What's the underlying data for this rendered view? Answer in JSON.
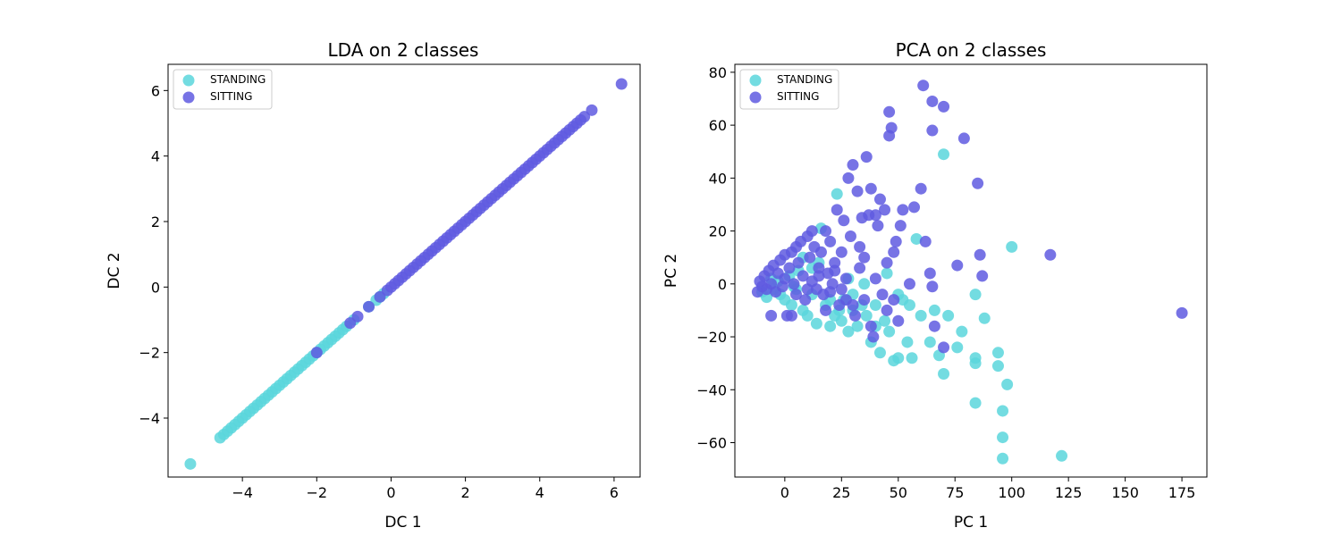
{
  "colors": {
    "standing": "#5ad6dc",
    "sitting": "#5f5ae0"
  },
  "chart_data": [
    {
      "type": "scatter",
      "title": "LDA on 2 classes",
      "xlabel": "DC 1",
      "ylabel": "DC 2",
      "xlim": [
        -6.0,
        6.7
      ],
      "ylim": [
        -5.8,
        6.8
      ],
      "xticks": [
        -4,
        -2,
        0,
        2,
        4,
        6
      ],
      "yticks": [
        -4,
        -2,
        0,
        2,
        4,
        6
      ],
      "legend_position": "top-left",
      "series": [
        {
          "name": "STANDING",
          "color": "#5ad6dc",
          "points": [
            [
              -5.4,
              -5.4
            ],
            [
              -4.6,
              -4.6
            ],
            [
              -4.5,
              -4.5
            ],
            [
              -4.4,
              -4.4
            ],
            [
              -4.3,
              -4.3
            ],
            [
              -4.2,
              -4.2
            ],
            [
              -4.1,
              -4.1
            ],
            [
              -4.0,
              -4.0
            ],
            [
              -3.9,
              -3.9
            ],
            [
              -3.8,
              -3.8
            ],
            [
              -3.7,
              -3.7
            ],
            [
              -3.6,
              -3.6
            ],
            [
              -3.5,
              -3.5
            ],
            [
              -3.4,
              -3.4
            ],
            [
              -3.3,
              -3.3
            ],
            [
              -3.2,
              -3.2
            ],
            [
              -3.1,
              -3.1
            ],
            [
              -3.0,
              -3.0
            ],
            [
              -2.9,
              -2.9
            ],
            [
              -2.8,
              -2.8
            ],
            [
              -2.7,
              -2.7
            ],
            [
              -2.6,
              -2.6
            ],
            [
              -2.5,
              -2.5
            ],
            [
              -2.4,
              -2.4
            ],
            [
              -2.3,
              -2.3
            ],
            [
              -2.2,
              -2.2
            ],
            [
              -2.1,
              -2.1
            ],
            [
              -2.0,
              -2.0
            ],
            [
              -1.9,
              -1.9
            ],
            [
              -1.8,
              -1.8
            ],
            [
              -1.7,
              -1.7
            ],
            [
              -1.6,
              -1.6
            ],
            [
              -1.5,
              -1.5
            ],
            [
              -1.4,
              -1.4
            ],
            [
              -1.3,
              -1.3
            ],
            [
              -1.2,
              -1.2
            ],
            [
              -1.0,
              -1.0
            ],
            [
              -0.6,
              -0.6
            ],
            [
              -0.4,
              -0.4
            ],
            [
              -0.3,
              -0.3
            ],
            [
              -0.2,
              -0.2
            ]
          ]
        },
        {
          "name": "SITTING",
          "color": "#5f5ae0",
          "points": [
            [
              -2.0,
              -2.0
            ],
            [
              -1.1,
              -1.1
            ],
            [
              -0.9,
              -0.9
            ],
            [
              -0.6,
              -0.6
            ],
            [
              -0.3,
              -0.3
            ],
            [
              -0.1,
              -0.1
            ],
            [
              0.0,
              0.0
            ],
            [
              0.1,
              0.1
            ],
            [
              0.2,
              0.2
            ],
            [
              0.3,
              0.3
            ],
            [
              0.4,
              0.4
            ],
            [
              0.5,
              0.5
            ],
            [
              0.6,
              0.6
            ],
            [
              0.7,
              0.7
            ],
            [
              0.8,
              0.8
            ],
            [
              0.9,
              0.9
            ],
            [
              1.0,
              1.0
            ],
            [
              1.1,
              1.1
            ],
            [
              1.2,
              1.2
            ],
            [
              1.3,
              1.3
            ],
            [
              1.4,
              1.4
            ],
            [
              1.5,
              1.5
            ],
            [
              1.6,
              1.6
            ],
            [
              1.7,
              1.7
            ],
            [
              1.8,
              1.8
            ],
            [
              1.9,
              1.9
            ],
            [
              2.0,
              2.0
            ],
            [
              2.1,
              2.1
            ],
            [
              2.2,
              2.2
            ],
            [
              2.3,
              2.3
            ],
            [
              2.4,
              2.4
            ],
            [
              2.5,
              2.5
            ],
            [
              2.6,
              2.6
            ],
            [
              2.7,
              2.7
            ],
            [
              2.8,
              2.8
            ],
            [
              2.9,
              2.9
            ],
            [
              3.0,
              3.0
            ],
            [
              3.1,
              3.1
            ],
            [
              3.2,
              3.2
            ],
            [
              3.3,
              3.3
            ],
            [
              3.4,
              3.4
            ],
            [
              3.5,
              3.5
            ],
            [
              3.6,
              3.6
            ],
            [
              3.7,
              3.7
            ],
            [
              3.8,
              3.8
            ],
            [
              3.9,
              3.9
            ],
            [
              4.0,
              4.0
            ],
            [
              4.1,
              4.1
            ],
            [
              4.2,
              4.2
            ],
            [
              4.3,
              4.3
            ],
            [
              4.4,
              4.4
            ],
            [
              4.5,
              4.5
            ],
            [
              4.6,
              4.6
            ],
            [
              4.7,
              4.7
            ],
            [
              4.8,
              4.8
            ],
            [
              4.9,
              4.9
            ],
            [
              5.0,
              5.0
            ],
            [
              5.1,
              5.1
            ],
            [
              5.2,
              5.2
            ],
            [
              5.4,
              5.4
            ],
            [
              6.2,
              6.2
            ]
          ]
        }
      ]
    },
    {
      "type": "scatter",
      "title": "PCA on 2 classes",
      "xlabel": "PC 1",
      "ylabel": "PC 2",
      "xlim": [
        -22,
        186
      ],
      "ylim": [
        -73,
        83
      ],
      "xticks": [
        0,
        25,
        50,
        75,
        100,
        125,
        150,
        175
      ],
      "yticks": [
        -60,
        -40,
        -20,
        0,
        20,
        40,
        60,
        80
      ],
      "legend_position": "top-left",
      "series": [
        {
          "name": "STANDING",
          "color": "#5ad6dc",
          "points": [
            [
              -10,
              -3
            ],
            [
              -8,
              -5
            ],
            [
              -6,
              2
            ],
            [
              -5,
              -2
            ],
            [
              -3,
              1
            ],
            [
              -2,
              -4
            ],
            [
              0,
              -6
            ],
            [
              2,
              3
            ],
            [
              3,
              -8
            ],
            [
              5,
              -2
            ],
            [
              6,
              5
            ],
            [
              8,
              -10
            ],
            [
              10,
              -12
            ],
            [
              12,
              -4
            ],
            [
              14,
              -15
            ],
            [
              15,
              8
            ],
            [
              16,
              21
            ],
            [
              18,
              -8
            ],
            [
              20,
              -16
            ],
            [
              22,
              -12
            ],
            [
              23,
              34
            ],
            [
              25,
              -14
            ],
            [
              26,
              -6
            ],
            [
              28,
              -18
            ],
            [
              30,
              -10
            ],
            [
              32,
              -16
            ],
            [
              34,
              -8
            ],
            [
              36,
              -12
            ],
            [
              38,
              -22
            ],
            [
              40,
              -16
            ],
            [
              42,
              -26
            ],
            [
              44,
              -14
            ],
            [
              46,
              -18
            ],
            [
              48,
              -29
            ],
            [
              50,
              -28
            ],
            [
              52,
              -6
            ],
            [
              54,
              -22
            ],
            [
              56,
              -28
            ],
            [
              58,
              17
            ],
            [
              60,
              -12
            ],
            [
              64,
              -22
            ],
            [
              66,
              -10
            ],
            [
              68,
              -27
            ],
            [
              70,
              49
            ],
            [
              70,
              -34
            ],
            [
              72,
              -12
            ],
            [
              76,
              -24
            ],
            [
              78,
              -18
            ],
            [
              84,
              -4
            ],
            [
              84,
              -28
            ],
            [
              84,
              -30
            ],
            [
              84,
              -45
            ],
            [
              88,
              -13
            ],
            [
              94,
              -26
            ],
            [
              94,
              -31
            ],
            [
              96,
              -48
            ],
            [
              96,
              -58
            ],
            [
              96,
              -66
            ],
            [
              98,
              -38
            ],
            [
              100,
              14
            ],
            [
              122,
              -65
            ],
            [
              40,
              -8
            ],
            [
              45,
              4
            ],
            [
              50,
              -4
            ],
            [
              55,
              -8
            ],
            [
              35,
              0
            ],
            [
              30,
              -4
            ],
            [
              20,
              -6
            ],
            [
              28,
              2
            ],
            [
              12,
              6
            ],
            [
              8,
              10
            ],
            [
              4,
              -1
            ],
            [
              24,
              -10
            ]
          ]
        },
        {
          "name": "SITTING",
          "color": "#5f5ae0",
          "points": [
            [
              -12,
              -3
            ],
            [
              -11,
              1
            ],
            [
              -10,
              -1
            ],
            [
              -9,
              3
            ],
            [
              -8,
              -2
            ],
            [
              -7,
              5
            ],
            [
              -6,
              0
            ],
            [
              -5,
              7
            ],
            [
              -4,
              -3
            ],
            [
              -3,
              4
            ],
            [
              -2,
              9
            ],
            [
              -1,
              -1
            ],
            [
              0,
              11
            ],
            [
              0,
              2
            ],
            [
              1,
              -12
            ],
            [
              2,
              6
            ],
            [
              3,
              12
            ],
            [
              4,
              0
            ],
            [
              5,
              -4
            ],
            [
              6,
              8
            ],
            [
              7,
              16
            ],
            [
              8,
              3
            ],
            [
              9,
              -6
            ],
            [
              10,
              18
            ],
            [
              11,
              10
            ],
            [
              12,
              1
            ],
            [
              13,
              14
            ],
            [
              14,
              -2
            ],
            [
              15,
              6
            ],
            [
              16,
              12
            ],
            [
              17,
              -4
            ],
            [
              18,
              20
            ],
            [
              19,
              4
            ],
            [
              20,
              16
            ],
            [
              21,
              0
            ],
            [
              22,
              8
            ],
            [
              23,
              28
            ],
            [
              24,
              -8
            ],
            [
              25,
              12
            ],
            [
              26,
              24
            ],
            [
              27,
              2
            ],
            [
              28,
              40
            ],
            [
              29,
              18
            ],
            [
              30,
              45
            ],
            [
              31,
              -12
            ],
            [
              32,
              35
            ],
            [
              33,
              14
            ],
            [
              34,
              25
            ],
            [
              35,
              -6
            ],
            [
              36,
              48
            ],
            [
              37,
              26
            ],
            [
              38,
              36
            ],
            [
              39,
              -20
            ],
            [
              40,
              26
            ],
            [
              41,
              22
            ],
            [
              42,
              32
            ],
            [
              43,
              -4
            ],
            [
              44,
              28
            ],
            [
              45,
              8
            ],
            [
              46,
              65
            ],
            [
              46,
              56
            ],
            [
              47,
              59
            ],
            [
              48,
              12
            ],
            [
              49,
              16
            ],
            [
              50,
              -14
            ],
            [
              51,
              22
            ],
            [
              52,
              28
            ],
            [
              55,
              0
            ],
            [
              57,
              29
            ],
            [
              60,
              36
            ],
            [
              61,
              75
            ],
            [
              62,
              16
            ],
            [
              64,
              4
            ],
            [
              65,
              -1
            ],
            [
              65,
              58
            ],
            [
              65,
              69
            ],
            [
              66,
              -16
            ],
            [
              70,
              67
            ],
            [
              70,
              -24
            ],
            [
              76,
              7
            ],
            [
              79,
              55
            ],
            [
              85,
              38
            ],
            [
              86,
              11
            ],
            [
              87,
              3
            ],
            [
              117,
              11
            ],
            [
              175,
              -11
            ],
            [
              -6,
              -12
            ],
            [
              3,
              -12
            ],
            [
              25,
              -2
            ],
            [
              30,
              -8
            ],
            [
              38,
              -16
            ],
            [
              33,
              6
            ],
            [
              20,
              -3
            ],
            [
              15,
              3
            ],
            [
              10,
              -2
            ],
            [
              5,
              14
            ],
            [
              12,
              20
            ],
            [
              22,
              5
            ],
            [
              27,
              -6
            ],
            [
              35,
              10
            ],
            [
              40,
              2
            ],
            [
              45,
              -10
            ],
            [
              48,
              -6
            ],
            [
              18,
              -10
            ]
          ]
        }
      ]
    }
  ]
}
